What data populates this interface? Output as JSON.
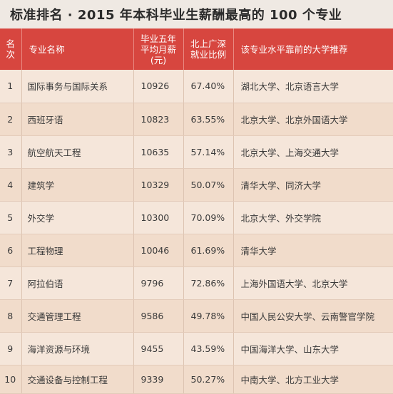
{
  "title": "标准排名 · 2015 年本科毕业生薪酬最高的 100 个专业",
  "headers": {
    "rank": "名次",
    "major": "专业名称",
    "salary": "毕业五年平均月薪(元)",
    "ratio": "北上广深就业比例",
    "schools": "该专业水平靠前的大学推荐"
  },
  "rows": [
    {
      "rank": "1",
      "major": "国际事务与国际关系",
      "salary": "10926",
      "ratio": "67.40%",
      "schools": "湖北大学、北京语言大学"
    },
    {
      "rank": "2",
      "major": "西班牙语",
      "salary": "10823",
      "ratio": "63.55%",
      "schools": "北京大学、北京外国语大学"
    },
    {
      "rank": "3",
      "major": "航空航天工程",
      "salary": "10635",
      "ratio": "57.14%",
      "schools": "北京大学、上海交通大学"
    },
    {
      "rank": "4",
      "major": "建筑学",
      "salary": "10329",
      "ratio": "50.07%",
      "schools": "清华大学、同济大学"
    },
    {
      "rank": "5",
      "major": "外交学",
      "salary": "10300",
      "ratio": "70.09%",
      "schools": "北京大学、外交学院"
    },
    {
      "rank": "6",
      "major": "工程物理",
      "salary": "10046",
      "ratio": "61.69%",
      "schools": "清华大学"
    },
    {
      "rank": "7",
      "major": "阿拉伯语",
      "salary": "9796",
      "ratio": "72.86%",
      "schools": "上海外国语大学、北京大学"
    },
    {
      "rank": "8",
      "major": "交通管理工程",
      "salary": "9586",
      "ratio": "49.78%",
      "schools": "中国人民公安大学、云南警官学院"
    },
    {
      "rank": "9",
      "major": "海洋资源与环境",
      "salary": "9455",
      "ratio": "43.59%",
      "schools": "中国海洋大学、山东大学"
    },
    {
      "rank": "10",
      "major": "交通设备与控制工程",
      "salary": "9339",
      "ratio": "50.27%",
      "schools": "中南大学、北方工业大学"
    }
  ],
  "colors": {
    "header_bg": "#d7463f",
    "row_bg_odd": "#f5e6da",
    "row_bg_even": "#f1dccb",
    "title_bg": "#efe9e3"
  }
}
